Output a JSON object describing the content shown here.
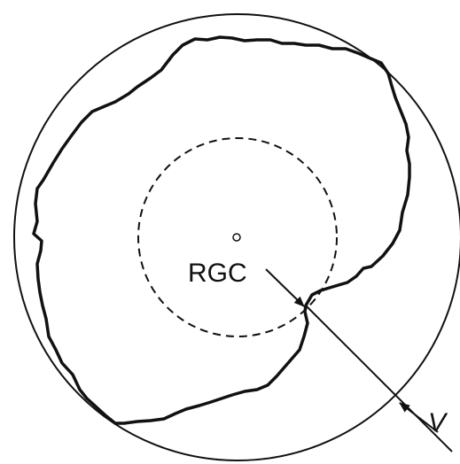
{
  "diagram": {
    "center_label": "RGC",
    "arrow_label": "V"
  },
  "colors": {
    "stroke": "#111111",
    "background": "#ffffff"
  }
}
